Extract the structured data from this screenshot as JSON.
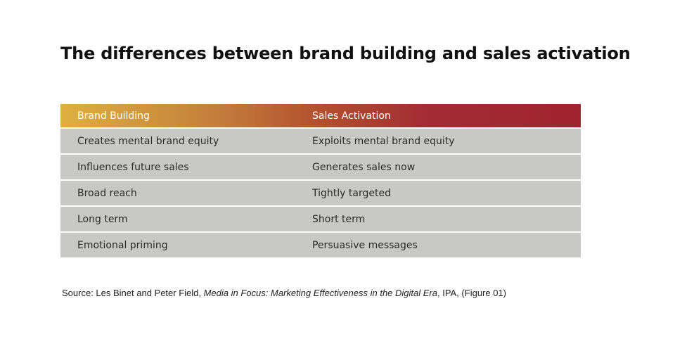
{
  "title": "The differences between brand building and sales activation",
  "table": {
    "headers": [
      "Brand Building",
      "Sales Activation"
    ],
    "rows": [
      [
        "Creates mental brand equity",
        "Exploits mental brand equity"
      ],
      [
        "Influences future sales",
        "Generates sales now"
      ],
      [
        "Broad reach",
        "Tightly targeted"
      ],
      [
        "Long term",
        "Short term"
      ],
      [
        "Emotional priming",
        "Persuasive messages"
      ]
    ]
  },
  "colors": {
    "header_gradient_start": "#ddb13f",
    "header_gradient_end": "#a0232f",
    "row_background": "#c8c8c6"
  },
  "source": {
    "prefix": "Source: Les Binet and Peter Field, ",
    "publication": "Media in Focus: Marketing Effectiveness in the Digital Era",
    "suffix": ", IPA, (Figure 01)"
  }
}
